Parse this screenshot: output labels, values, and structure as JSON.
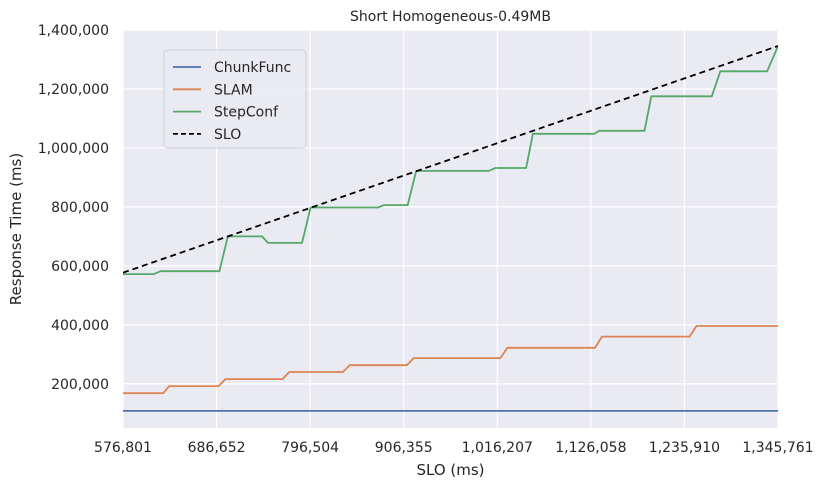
{
  "chart_data": {
    "type": "line",
    "title": "Short Homogeneous-0.49MB",
    "xlabel": "SLO (ms)",
    "ylabel": "Response Time (ms)",
    "xlim": [
      576801,
      1345761
    ],
    "ylim": [
      50000,
      1400000
    ],
    "xticks": [
      576801,
      686652,
      796504,
      906355,
      1016207,
      1126058,
      1235910,
      1345761
    ],
    "xtick_labels": [
      "576,801",
      "686,652",
      "796,504",
      "906,355",
      "1,016,207",
      "1,126,058",
      "1,235,910",
      "1,345,761"
    ],
    "yticks": [
      200000,
      400000,
      600000,
      800000,
      1000000,
      1200000,
      1400000
    ],
    "ytick_labels": [
      "200,000",
      "400,000",
      "600,000",
      "800,000",
      "1,000,000",
      "1,200,000",
      "1,400,000"
    ],
    "grid": true,
    "legend_position": "upper-left",
    "series": [
      {
        "name": "ChunkFunc",
        "color": "#4c72b0",
        "style": "solid",
        "x": [
          576801,
          1345761
        ],
        "y": [
          108000,
          108000
        ]
      },
      {
        "name": "SLAM",
        "color": "#dd8452",
        "style": "solid",
        "x": [
          576801,
          624000,
          631000,
          689000,
          697000,
          764000,
          772000,
          835000,
          843000,
          910000,
          918000,
          1020000,
          1028000,
          1131000,
          1139000,
          1242000,
          1250000,
          1345761
        ],
        "y": [
          168000,
          168000,
          192000,
          192000,
          216000,
          216000,
          240000,
          240000,
          263000,
          263000,
          287000,
          287000,
          322000,
          322000,
          360000,
          360000,
          396000,
          396000
        ],
        "marks": []
      },
      {
        "name": "StepConf",
        "color": "#55a868",
        "style": "solid",
        "x": [
          576801,
          613000,
          621000,
          690000,
          700000,
          740000,
          747000,
          787000,
          797000,
          876000,
          883000,
          911000,
          921000,
          1006000,
          1014000,
          1050000,
          1058000,
          1130000,
          1136000,
          1189000,
          1197000,
          1268000,
          1278000,
          1333000,
          1345761
        ],
        "y": [
          572000,
          572000,
          582000,
          582000,
          700000,
          700000,
          678000,
          678000,
          798000,
          798000,
          806000,
          806000,
          922000,
          922000,
          932000,
          932000,
          1048000,
          1048000,
          1058000,
          1058000,
          1175000,
          1175000,
          1260000,
          1260000,
          1345000
        ]
      },
      {
        "name": "SLO",
        "color": "#000000",
        "style": "dashed",
        "x": [
          576801,
          1345761
        ],
        "y": [
          576801,
          1345761
        ]
      }
    ]
  }
}
